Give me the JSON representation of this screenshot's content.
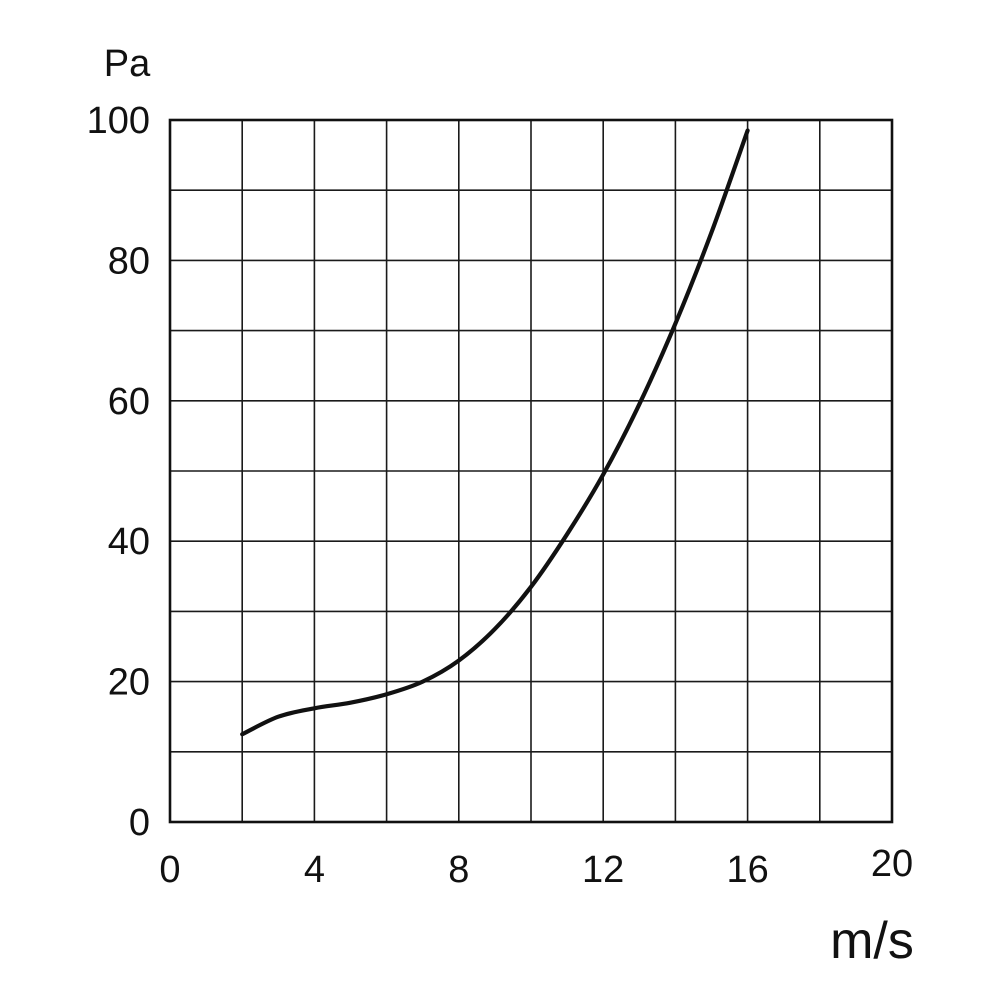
{
  "chart_data": {
    "type": "line",
    "title": "",
    "xlabel": "m/s",
    "ylabel": "Pa",
    "xlim": [
      0,
      20
    ],
    "ylim": [
      0,
      100
    ],
    "grid": true,
    "x_ticks": [
      0,
      4,
      8,
      12,
      16,
      20
    ],
    "y_ticks": [
      0,
      20,
      40,
      60,
      80,
      100
    ],
    "x_gridlines": [
      0,
      2,
      4,
      6,
      8,
      10,
      12,
      14,
      16,
      18,
      20
    ],
    "y_gridlines": [
      0,
      10,
      20,
      30,
      40,
      50,
      60,
      70,
      80,
      90,
      100
    ],
    "series": [
      {
        "color": "#111111",
        "x": [
          2,
          3,
          4,
          5,
          6,
          7,
          8,
          9,
          10,
          11,
          12,
          13,
          14,
          15,
          16
        ],
        "y": [
          12.5,
          15,
          16.2,
          17,
          18.2,
          20,
          23,
          27.5,
          33.5,
          41,
          49.5,
          59.5,
          71,
          84,
          98.5
        ]
      }
    ]
  }
}
